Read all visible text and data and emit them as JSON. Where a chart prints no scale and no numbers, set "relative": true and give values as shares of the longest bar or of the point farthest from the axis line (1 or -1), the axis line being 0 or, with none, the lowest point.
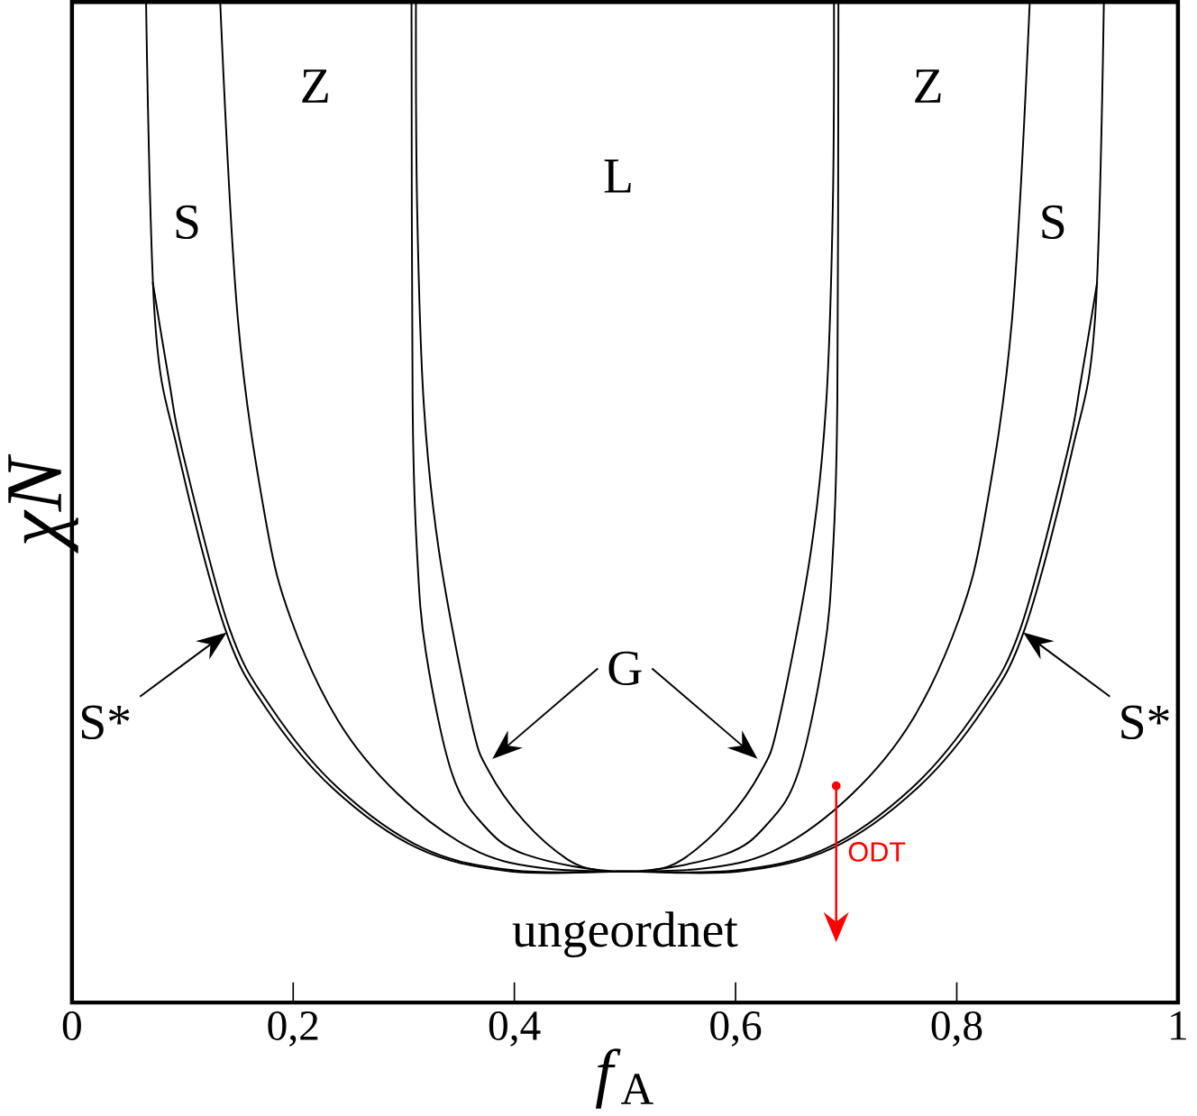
{
  "chart_data": {
    "type": "line",
    "relative": true,
    "xlabel": "*f*$_{A}$",
    "ylabel": "χN",
    "xlim": [
      0,
      1
    ],
    "xticks": [
      0,
      {
        "value": 0.2,
        "label": "0,2"
      },
      {
        "value": 0.4,
        "label": "0,4"
      },
      {
        "value": 0.6,
        "label": "0,6"
      },
      {
        "value": 0.8,
        "label": "0,8"
      },
      1
    ],
    "grid": false,
    "marker": "none",
    "line_style": "solid",
    "series": [
      {
        "color": "#000000",
        "x": [
          0.067,
          0.075,
          0.096,
          0.138,
          0.175,
          0.235,
          0.313,
          0.397,
          0.5,
          0.603,
          0.687,
          0.765,
          0.825,
          0.862,
          0.904,
          0.925,
          0.933
        ],
        "values": [
          1,
          0.683,
          0.55,
          0.375,
          0.295,
          0.215,
          0.154,
          0.131,
          0.131,
          0.131,
          0.154,
          0.215,
          0.295,
          0.375,
          0.55,
          0.683,
          1
        ]
      },
      {
        "color": "#000000",
        "x": [
          0.073,
          0.088,
          0.1,
          0.142,
          0.18,
          0.24,
          0.318,
          0.4,
          0.5,
          0.6,
          0.682,
          0.76,
          0.82,
          0.858,
          0.9,
          0.912,
          0.927
        ],
        "values": [
          0.72,
          0.62,
          0.55,
          0.375,
          0.295,
          0.215,
          0.154,
          0.132,
          0.131,
          0.132,
          0.154,
          0.215,
          0.295,
          0.375,
          0.55,
          0.62,
          0.72
        ]
      },
      {
        "color": "#000000",
        "x": [
          0.134,
          0.15,
          0.175,
          0.198,
          0.241,
          0.295,
          0.361,
          0.421,
          0.5,
          0.579,
          0.639,
          0.705,
          0.759,
          0.802,
          0.825,
          0.85,
          0.866
        ],
        "values": [
          1,
          0.683,
          0.483,
          0.383,
          0.281,
          0.208,
          0.154,
          0.135,
          0.131,
          0.135,
          0.154,
          0.208,
          0.281,
          0.383,
          0.483,
          0.683,
          1
        ]
      },
      {
        "color": "#000000",
        "x": [
          0.307,
          0.308,
          0.312,
          0.32,
          0.343,
          0.37,
          0.41,
          0.5,
          0.59,
          0.63,
          0.657,
          0.68,
          0.688,
          0.692,
          0.693
        ],
        "values": [
          1,
          0.6,
          0.45,
          0.35,
          0.231,
          0.18,
          0.148,
          0.131,
          0.148,
          0.18,
          0.231,
          0.35,
          0.45,
          0.6,
          1
        ]
      },
      {
        "color": "#000000",
        "x": [
          0.311,
          0.312,
          0.318,
          0.332,
          0.361,
          0.377,
          0.409,
          0.448,
          0.476,
          0.5,
          0.524,
          0.552,
          0.591,
          0.623,
          0.639,
          0.668,
          0.682,
          0.688,
          0.689
        ],
        "values": [
          1,
          0.8,
          0.6,
          0.45,
          0.281,
          0.231,
          0.181,
          0.143,
          0.132,
          0.131,
          0.132,
          0.143,
          0.181,
          0.231,
          0.281,
          0.45,
          0.6,
          0.8,
          1
        ]
      }
    ],
    "annotations": [
      "Z",
      "L",
      "Z",
      "S",
      "S",
      {
        "text": "S*",
        "x": 0.14,
        "y": 0.37
      },
      {
        "text": "S*",
        "x": 0.86,
        "y": 0.37
      },
      "G",
      "ungeordnet",
      "ODT"
    ]
  }
}
